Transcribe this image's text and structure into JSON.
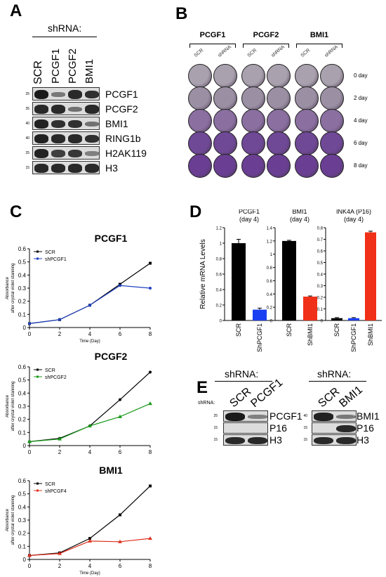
{
  "panels": {
    "A": "A",
    "B": "B",
    "C": "C",
    "D": "D",
    "E": "E"
  },
  "panelA": {
    "header": "shRNA:",
    "lanes": [
      "SCR",
      "PCGF1",
      "PCGF2",
      "BMI1"
    ],
    "rows": [
      {
        "label": "PCGF1",
        "mw": "25",
        "intensity": [
          1.0,
          0.35,
          0.9,
          0.85
        ]
      },
      {
        "label": "PCGF2",
        "mw": "35",
        "intensity": [
          0.9,
          0.9,
          0.4,
          0.9
        ]
      },
      {
        "label": "BMI1",
        "mw": "40",
        "intensity": [
          0.95,
          0.85,
          0.85,
          0.4
        ]
      },
      {
        "label": "RING1b",
        "mw": "40",
        "intensity": [
          0.95,
          0.9,
          0.9,
          0.85
        ]
      },
      {
        "label": "H2AK119",
        "mw": "25",
        "intensity": [
          0.95,
          0.75,
          0.8,
          0.3
        ]
      },
      {
        "label": "H3",
        "mw": "15",
        "intensity": [
          0.9,
          0.9,
          0.9,
          0.9
        ]
      }
    ]
  },
  "panelB": {
    "groups": [
      {
        "name": "PCGF1",
        "sub": [
          "SCR",
          "shRNA"
        ]
      },
      {
        "name": "PCGF2",
        "sub": [
          "SCR",
          "shRNA"
        ]
      },
      {
        "name": "BMI1",
        "sub": [
          "SCR",
          "shRNA"
        ]
      }
    ],
    "days": [
      "0 day",
      "2 day",
      "4 day",
      "6 day",
      "8 day"
    ],
    "well_colors": [
      "#a9a1ad",
      "#9b90a3",
      "#8a6fa0",
      "#6f4896",
      "#6a3f93"
    ]
  },
  "chart_data": [
    {
      "type": "line",
      "title": "PCGF1",
      "xlabel": "Time (Day)",
      "ylabel": "Absorbance after crystal violet stanning",
      "x": [
        0,
        2,
        4,
        6,
        8
      ],
      "xlim": [
        0,
        8
      ],
      "ylim": [
        0,
        0.6
      ],
      "xticks": [
        "0",
        "2",
        "4",
        "6",
        "8"
      ],
      "yticks": [
        "0",
        "0.1",
        "0.2",
        "0.3",
        "0.4",
        "0.5",
        "0.6"
      ],
      "series": [
        {
          "name": "SCR",
          "color": "#000000",
          "marker": "square",
          "values": [
            0.03,
            0.06,
            0.17,
            0.33,
            0.49
          ]
        },
        {
          "name": "shPCGF1",
          "color": "#1f3fbf",
          "marker": "circle",
          "values": [
            0.03,
            0.06,
            0.17,
            0.32,
            0.3
          ]
        }
      ]
    },
    {
      "type": "line",
      "title": "PCGF2",
      "xlabel": "Time (Day)",
      "ylabel": "Absorbance after crystal violet stanning",
      "x": [
        0,
        2,
        4,
        6,
        8
      ],
      "xlim": [
        0,
        8
      ],
      "ylim": [
        0,
        0.6
      ],
      "xticks": [
        "0",
        "2",
        "4",
        "6",
        "8"
      ],
      "yticks": [
        "0",
        "0.1",
        "0.2",
        "0.3",
        "0.4",
        "0.5",
        "0.6"
      ],
      "series": [
        {
          "name": "SCR",
          "color": "#000000",
          "marker": "circle",
          "values": [
            0.03,
            0.055,
            0.15,
            0.35,
            0.56
          ]
        },
        {
          "name": "shPCGF2",
          "color": "#1a9a1a",
          "marker": "triangle",
          "values": [
            0.03,
            0.05,
            0.15,
            0.22,
            0.32
          ]
        }
      ]
    },
    {
      "type": "line",
      "title": "BMI1",
      "xlabel": "Time (Day)",
      "ylabel": "Absorbance after crystal violet stanning",
      "x": [
        0,
        2,
        4,
        6,
        8
      ],
      "xlim": [
        0,
        8
      ],
      "ylim": [
        0,
        0.6
      ],
      "xticks": [
        "0",
        "2",
        "4",
        "6",
        "8"
      ],
      "yticks": [
        "0",
        "0.1",
        "0.2",
        "0.3",
        "0.4",
        "0.5",
        "0.6"
      ],
      "series": [
        {
          "name": "SCR",
          "color": "#000000",
          "marker": "square",
          "values": [
            0.03,
            0.05,
            0.16,
            0.34,
            0.56
          ]
        },
        {
          "name": "shPCGF4",
          "color": "#e03020",
          "marker": "triangle",
          "values": [
            0.03,
            0.045,
            0.14,
            0.135,
            0.16
          ]
        }
      ]
    },
    {
      "type": "bar",
      "title": "PCGF1 (day 4)",
      "ylabel": "Relative mRNA Levels",
      "categories": [
        "SCR",
        "ShPCGF1"
      ],
      "values": [
        1.0,
        0.14
      ],
      "errors": [
        0.05,
        0.02
      ],
      "colors": [
        "#000000",
        "#1a3ff0"
      ],
      "ylim": [
        0,
        1.2
      ],
      "yticks": [
        "0",
        "0.2",
        "0.4",
        "0.6",
        "0.8",
        "1",
        "1.2"
      ]
    },
    {
      "type": "bar",
      "title": "BMI1 (day 4)",
      "categories": [
        "SCR",
        "ShBMI1"
      ],
      "values": [
        1.2,
        0.36
      ],
      "errors": [
        0.01,
        0.01
      ],
      "colors": [
        "#000000",
        "#f03018"
      ],
      "ylim": [
        0,
        1.4
      ],
      "yticks": [
        "0",
        "0.2",
        "0.4",
        "0.6",
        "0.8",
        "1",
        "1.2",
        "1.4"
      ]
    },
    {
      "type": "bar",
      "title": "INK4A (P16) (day 4)",
      "categories": [
        "SCR",
        "ShPCGF1",
        "ShBMI1"
      ],
      "values": [
        0.02,
        0.02,
        0.76
      ],
      "errors": [
        0.005,
        0.005,
        0.01
      ],
      "colors": [
        "#000000",
        "#1a3ff0",
        "#f03018"
      ],
      "ylim": [
        0,
        0.8
      ],
      "yticks": [
        "0",
        "0.1",
        "0.2",
        "0.3",
        "0.4",
        "0.5",
        "0.6",
        "0.7",
        "0.8"
      ]
    }
  ],
  "panelD": {
    "title_lines": [
      [
        "PCGF1",
        "(day 4)"
      ],
      [
        "BMI1",
        "(day 4)"
      ],
      [
        "INK4A (P16)",
        "(day 4)"
      ]
    ]
  },
  "panelE": {
    "left": {
      "header": "shRNA:",
      "rowlabel": "shRNA:",
      "lanes": [
        "SCR",
        "PCGF1"
      ],
      "rows": [
        {
          "label": "PCGF1",
          "mw": "25",
          "intensity": [
            1.0,
            0.3
          ]
        },
        {
          "label": "P16",
          "mw": "15",
          "intensity": [
            0.05,
            0.05
          ]
        },
        {
          "label": "H3",
          "mw": "15",
          "intensity": [
            0.9,
            0.9
          ]
        }
      ]
    },
    "right": {
      "header": "shRNA:",
      "lanes": [
        "SCR",
        "BMI1"
      ],
      "rows": [
        {
          "label": "BMI1",
          "mw": "40",
          "intensity": [
            0.95,
            0.35
          ]
        },
        {
          "label": "P16",
          "mw": "15",
          "intensity": [
            0.05,
            0.9
          ]
        },
        {
          "label": "H3",
          "mw": "15",
          "intensity": [
            0.9,
            0.9
          ]
        }
      ]
    }
  }
}
